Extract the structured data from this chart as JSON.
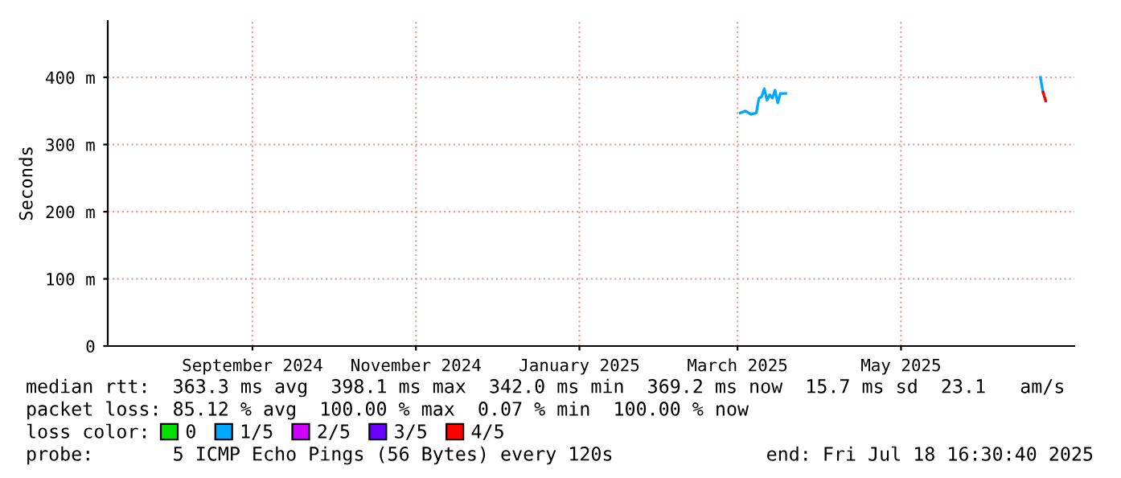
{
  "chart_data": {
    "type": "line",
    "ylabel": "Seconds",
    "xlim": [
      "2024-07-23",
      "2025-07-18T16:30"
    ],
    "xticks": [
      {
        "value": "2024-09-15",
        "label": "September 2024"
      },
      {
        "value": "2024-11-15",
        "label": "November 2024"
      },
      {
        "value": "2025-01-15",
        "label": "January 2025"
      },
      {
        "value": "2025-03-15",
        "label": "March 2025"
      },
      {
        "value": "2025-05-15",
        "label": "May 2025"
      }
    ],
    "ylim": [
      0,
      484
    ],
    "yticks": [
      0,
      {
        "value": 100,
        "label": "100 m"
      },
      {
        "value": 200,
        "label": "200 m"
      },
      {
        "value": 300,
        "label": "300 m"
      },
      {
        "value": 400,
        "label": "400 m"
      }
    ],
    "grid": true,
    "legend": "bottom",
    "legend_title": "loss color:",
    "series": [
      {
        "name": "0",
        "color": "#00e000"
      },
      {
        "name": "1/5",
        "color": "#00a8ff",
        "x": [
          "2025-03-16",
          "2025-03-18",
          "2025-03-20",
          "2025-03-22",
          "2025-03-23",
          "2025-03-24",
          "2025-03-25",
          "2025-03-26",
          "2025-03-27",
          "2025-03-28",
          "2025-03-29",
          "2025-03-30",
          "2025-03-31",
          "2025-04-02",
          "2025-05-01",
          "2025-07-06",
          "2025-07-07"
        ],
        "values": [
          347,
          350,
          345,
          347,
          369,
          371,
          383,
          366,
          374,
          369,
          381,
          362,
          376,
          376,
          null,
          400,
          378
        ]
      },
      {
        "name": "2/5",
        "color": "#d000ff"
      },
      {
        "name": "3/5",
        "color": "#6a00ff"
      },
      {
        "name": "4/5",
        "color": "#ff0000",
        "x": [
          "2025-07-07",
          "2025-07-08"
        ],
        "values": [
          378,
          365
        ]
      }
    ],
    "annotations": [
      "median rtt:  363.3 ms avg  398.1 ms max  342.0 ms min  369.2 ms now  15.7 ms sd  23.1   am/s",
      "packet loss: 85.12 % avg  100.00 % max  0.07 % min  100.00 % now",
      "probe:       5 ICMP Echo Pings (56 Bytes) every 120s",
      "end: Fri Jul 18 16:30:40 2025"
    ]
  }
}
